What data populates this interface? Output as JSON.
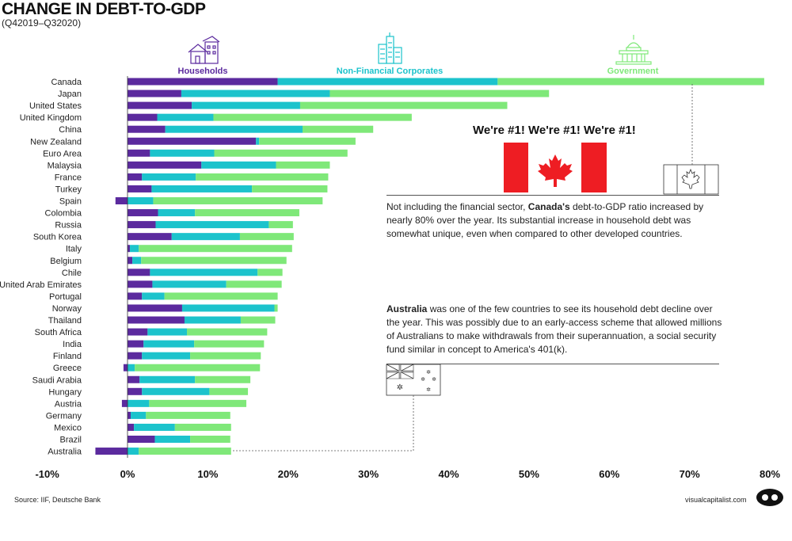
{
  "title": "CHANGE IN DEBT-TO-GDP",
  "subtitle": "(Q42019–Q32020)",
  "colors": {
    "households": "#5b2a9e",
    "corporates": "#1cc3cc",
    "government": "#7fe879"
  },
  "chart_data": {
    "type": "bar",
    "orientation": "horizontal",
    "stacked": true,
    "xlim": [
      -10,
      80
    ],
    "xticks": [
      -10,
      0,
      10,
      20,
      30,
      40,
      50,
      60,
      70,
      80
    ],
    "tick_labels": [
      "-10%",
      "0%",
      "10%",
      "20%",
      "30%",
      "40%",
      "50%",
      "60%",
      "70%",
      "80%"
    ],
    "categories": [
      "Canada",
      "Japan",
      "United States",
      "United Kingdom",
      "China",
      "New Zealand",
      "Euro Area",
      "Malaysia",
      "France",
      "Turkey",
      "Spain",
      "Colombia",
      "Russia",
      "South Korea",
      "Italy",
      "Belgium",
      "Chile",
      "United Arab Emirates",
      "Portugal",
      "Norway",
      "Thailand",
      "South Africa",
      "India",
      "Finland",
      "Greece",
      "Saudi Arabia",
      "Hungary",
      "Austria",
      "Germany",
      "Mexico",
      "Brazil",
      "Australia"
    ],
    "series": [
      {
        "name": "Households",
        "values": [
          18.7,
          6.7,
          8.0,
          3.7,
          4.7,
          16.0,
          2.8,
          9.2,
          1.8,
          3.0,
          -1.5,
          3.8,
          3.5,
          5.5,
          0.3,
          0.6,
          2.8,
          3.1,
          1.8,
          6.8,
          7.1,
          2.5,
          2.0,
          1.8,
          -0.5,
          1.5,
          1.8,
          -0.7,
          0.4,
          0.8,
          3.4,
          -4.0
        ]
      },
      {
        "name": "Non-Financial Corporates",
        "values": [
          27.4,
          18.5,
          13.5,
          7.0,
          17.1,
          0.4,
          8.0,
          9.3,
          6.7,
          12.5,
          3.2,
          4.6,
          14.1,
          8.5,
          1.1,
          1.1,
          13.4,
          9.2,
          2.8,
          11.5,
          7.0,
          4.9,
          6.3,
          6.0,
          0.9,
          6.9,
          8.4,
          2.7,
          1.9,
          5.1,
          4.4,
          1.4
        ]
      },
      {
        "name": "Government",
        "values": [
          33.2,
          27.3,
          25.8,
          24.7,
          8.8,
          12.0,
          16.6,
          6.7,
          16.5,
          9.4,
          21.1,
          13.0,
          3.0,
          6.7,
          19.1,
          18.1,
          3.1,
          6.9,
          14.1,
          0.4,
          4.3,
          10.0,
          8.7,
          8.8,
          15.6,
          6.9,
          4.8,
          12.1,
          10.5,
          7.0,
          5.0,
          11.5
        ]
      }
    ],
    "legend": [
      "Households",
      "Non-Financial Corporates",
      "Government"
    ],
    "legend_placement": "top"
  },
  "annotations": {
    "callout": "We're #1! We're #1! We're #1!",
    "canada_note": {
      "pre": "Not including the financial sector, ",
      "bold": "Canada's",
      "post": " debt-to-GDP ratio increased by nearly 80% over the year. Its substantial increase in household debt was somewhat unique, even when compared to other developed countries."
    },
    "australia_note": {
      "bold": "Australia",
      "post": " was one of the few countries to see its household debt decline over the year. This was possibly due to an early-access scheme that allowed millions of Australians to make withdrawals from their superannuation, a social security fund similar in concept to America's 401(k)."
    }
  },
  "footer": {
    "source": "Source: IIF, Deutsche Bank",
    "brand": "visualcapitalist.com"
  },
  "icons": [
    "house-icon",
    "office-buildings-icon",
    "capitol-building-icon",
    "canada-flag-icon",
    "canada-flag-outline-icon",
    "australia-flag-icon",
    "visual-capitalist-logo-icon"
  ]
}
